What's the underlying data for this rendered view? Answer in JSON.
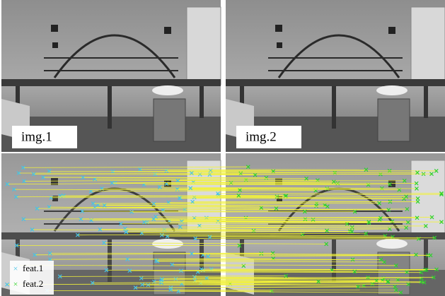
{
  "images": [
    {
      "label": "img.1"
    },
    {
      "label": "img.2"
    }
  ],
  "legend": [
    {
      "label": "feat.1",
      "color": "#46c3e6"
    },
    {
      "label": "feat.2",
      "color": "#2fd12f"
    }
  ],
  "match_color": "#f2f23a"
}
